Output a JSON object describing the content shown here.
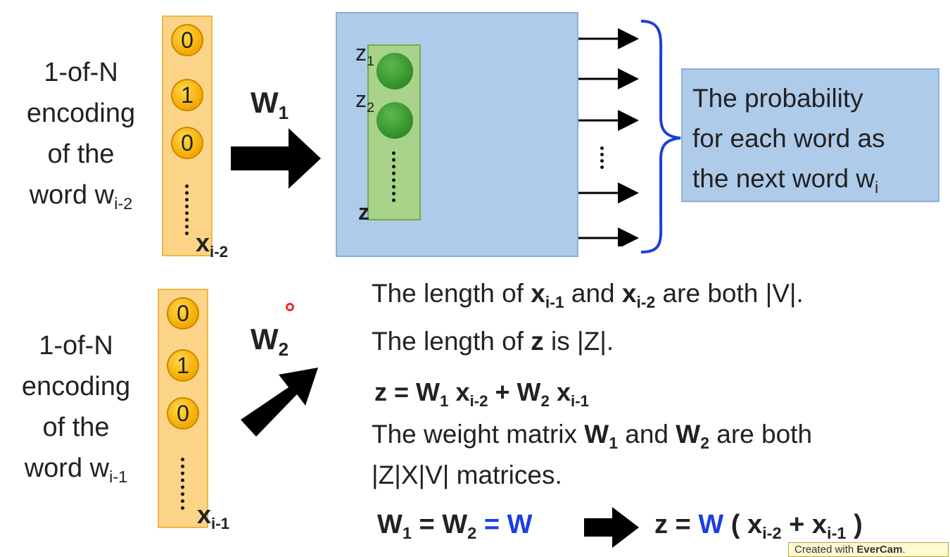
{
  "top": {
    "label_lines": [
      "1-of-N",
      "encoding",
      "of the",
      "word w"
    ],
    "label_sub": "i-2",
    "vector_values": [
      "0",
      "1",
      "0"
    ],
    "vector_var": "x",
    "vector_sub": "i-2",
    "weight_var": "W",
    "weight_sub": "1",
    "hidden": {
      "z1_var": "z",
      "z1_sub": "1",
      "z2_var": "z",
      "z2_sub": "2",
      "z_label": "z"
    },
    "output_text_lines": [
      "The probability",
      "for each word as",
      "the next word w"
    ],
    "output_sub": "i"
  },
  "bottom": {
    "label_lines": [
      "1-of-N",
      "encoding",
      "of the",
      "word w"
    ],
    "label_sub": "i-1",
    "vector_values": [
      "0",
      "1",
      "0"
    ],
    "vector_var": "x",
    "vector_sub": "i-1",
    "weight_var": "W",
    "weight_sub": "2"
  },
  "notes": {
    "line1": {
      "a": "The length of ",
      "b": "x",
      "b_sub": "i-1",
      "c": " and ",
      "d": "x",
      "d_sub": "i-2",
      "e": " are both |V|."
    },
    "line2": {
      "a": "The length of ",
      "b": "z",
      "c": " is |Z|."
    },
    "formula": {
      "a": "z = ",
      "w1": "W",
      "w1_sub": "1",
      "x1": " x",
      "x1_sub": "i-2",
      "plus": " + ",
      "w2": "W",
      "w2_sub": "2",
      "x2": " x",
      "x2_sub": "i-1"
    },
    "line4": {
      "a": "The weight matrix ",
      "w1": "W",
      "w1_sub": "1",
      "and": " and ",
      "w2": "W",
      "w2_sub": "2",
      "rest": " are both"
    },
    "line5": "|Z|X|V| matrices.",
    "tie": {
      "w1": "W",
      "w1_sub": "1",
      "eq": " = ",
      "w2": "W",
      "w2_sub": "2",
      "eq2": " = ",
      "w": "W"
    },
    "result": {
      "a": "z = ",
      "w": "W",
      "open": " ( x",
      "x1_sub": "i-2",
      "plus": " + x",
      "x2_sub": "i-1",
      "close": " )"
    }
  },
  "watermark": {
    "prefix": "Created with ",
    "brand": "EverCam",
    "suffix": "."
  },
  "colors": {
    "vector_fill": "#fbd487",
    "bit_fill": "#f5a800",
    "box_fill": "#aecbea",
    "hidden_fill": "#a9d28a",
    "node_fill": "#3f9a35",
    "accent_blue": "#1a3ee6",
    "brace_blue": "#1f3fd8"
  }
}
